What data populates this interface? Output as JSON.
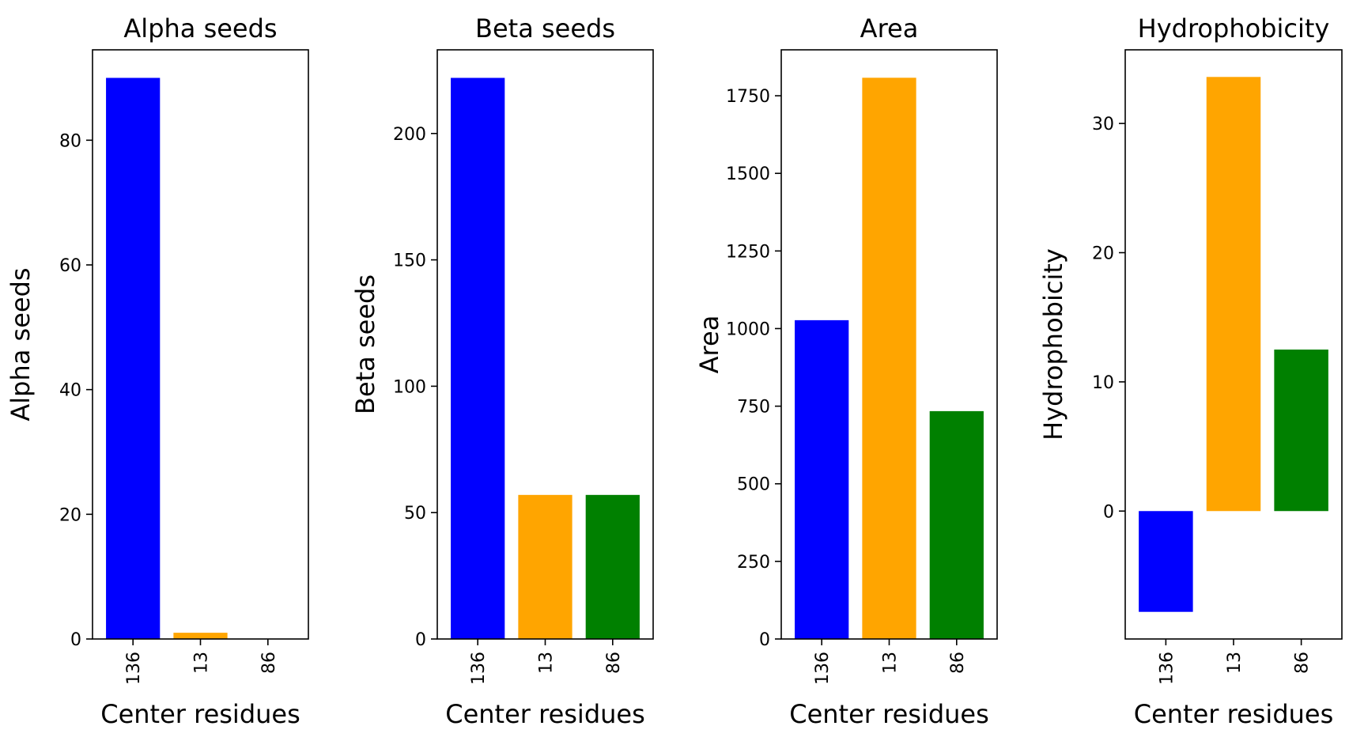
{
  "figure": {
    "colors": [
      "#0000ff",
      "#ffa500",
      "#008000"
    ]
  },
  "chart_data": [
    {
      "type": "bar",
      "title": "Alpha seeds",
      "xlabel": "Center residues",
      "ylabel": "Alpha seeds",
      "categories": [
        "136",
        "13",
        "86"
      ],
      "values": [
        90,
        1,
        0
      ],
      "ylim": [
        0,
        94.5
      ],
      "yticks": [
        0,
        20,
        40,
        60,
        80
      ],
      "grid": false
    },
    {
      "type": "bar",
      "title": "Beta seeds",
      "xlabel": "Center residues",
      "ylabel": "Beta seeds",
      "categories": [
        "136",
        "13",
        "86"
      ],
      "values": [
        222,
        57,
        57
      ],
      "ylim": [
        0,
        233.1
      ],
      "yticks": [
        0,
        50,
        100,
        150,
        200
      ],
      "grid": false
    },
    {
      "type": "bar",
      "title": "Area",
      "xlabel": "Center residues",
      "ylabel": "Area",
      "categories": [
        "136",
        "13",
        "86"
      ],
      "values": [
        1027,
        1808,
        734
      ],
      "ylim": [
        0,
        1898
      ],
      "yticks": [
        0,
        250,
        500,
        750,
        1000,
        1250,
        1500,
        1750
      ],
      "grid": false
    },
    {
      "type": "bar",
      "title": "Hydrophobicity",
      "xlabel": "Center residues",
      "ylabel": "Hydrophobicity",
      "categories": [
        "136",
        "13",
        "86"
      ],
      "values": [
        -7.8,
        33.6,
        12.5
      ],
      "ylim": [
        -9.9,
        35.7
      ],
      "yticks": [
        0,
        10,
        20,
        30
      ],
      "grid": false
    }
  ]
}
